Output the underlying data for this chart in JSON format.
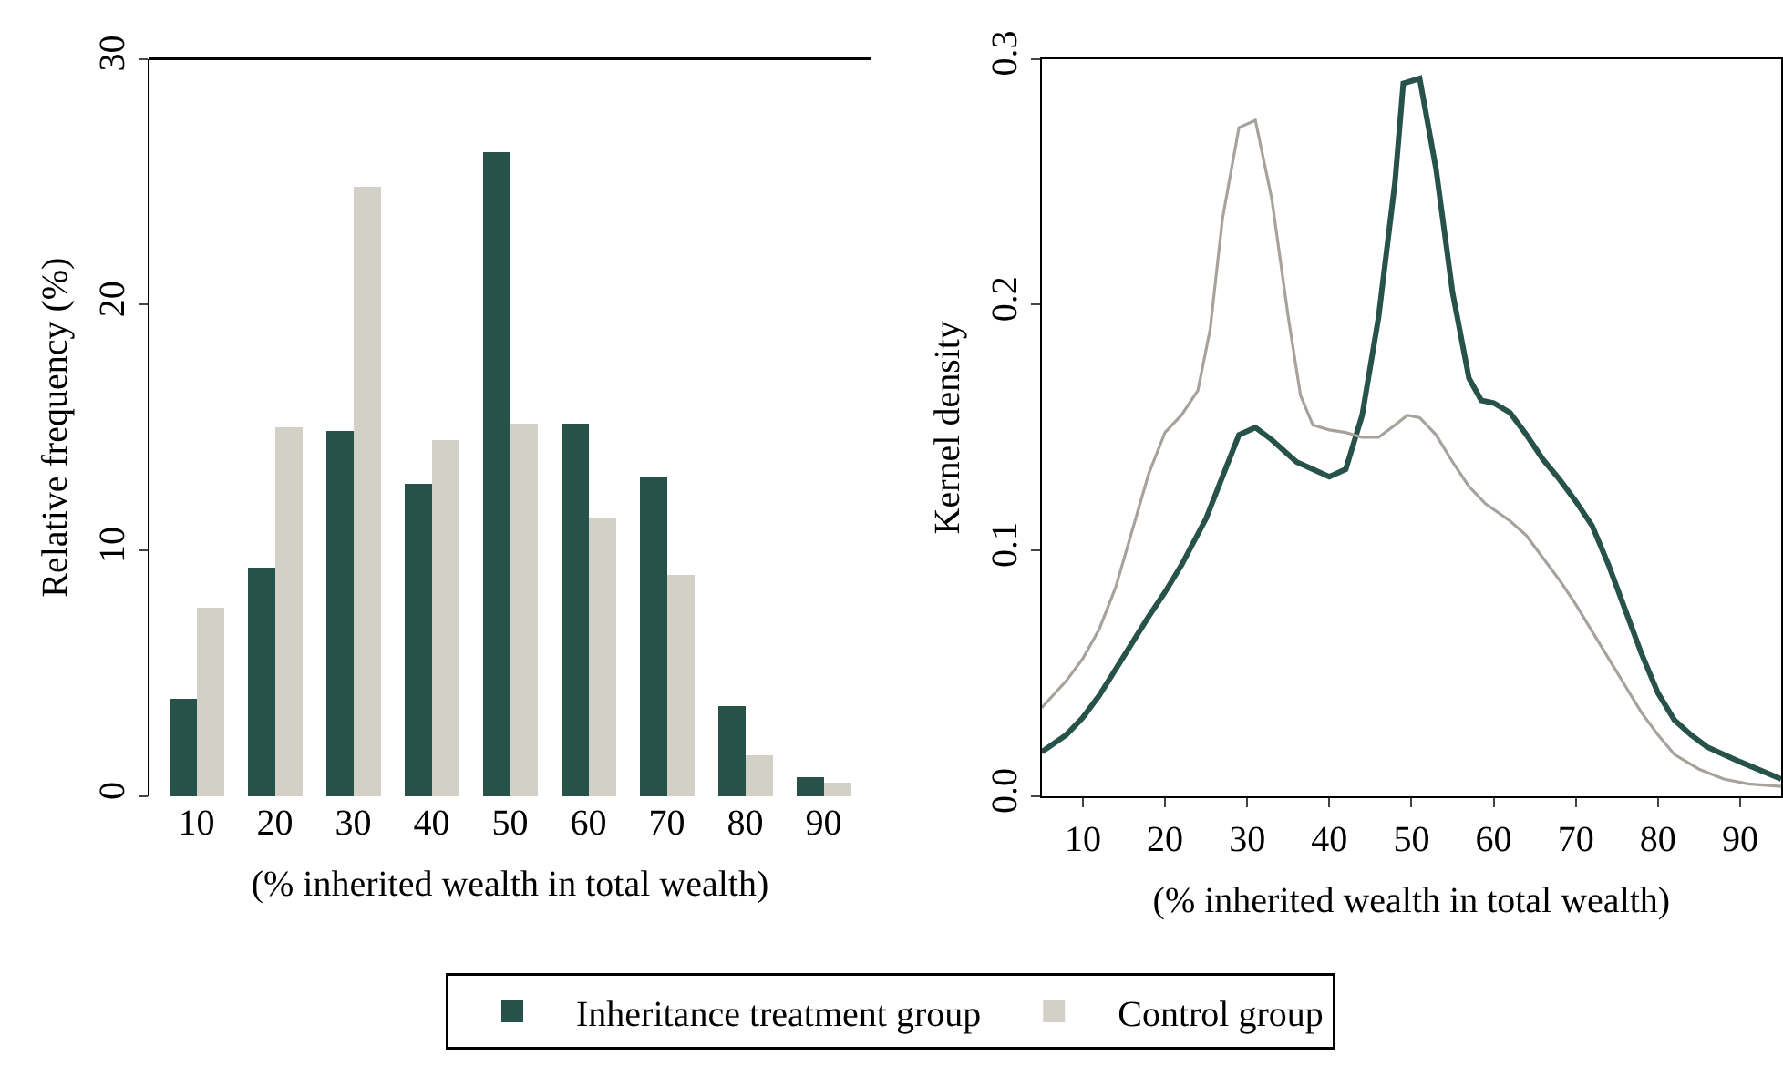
{
  "chart_data": [
    {
      "type": "bar",
      "xlabel": "(% inherited wealth in total wealth)",
      "ylabel": "Relative frequency (%)",
      "categories": [
        "10",
        "20",
        "30",
        "40",
        "50",
        "60",
        "70",
        "80",
        "90"
      ],
      "ylim": [
        0,
        30
      ],
      "yticks": [
        0,
        10,
        20,
        30
      ],
      "legend": "bottom",
      "series": [
        {
          "name": "Inheritance treatment group",
          "color": "#27524a",
          "values": [
            4.0,
            9.3,
            14.9,
            12.7,
            26.2,
            15.2,
            13.0,
            3.7,
            0.8
          ]
        },
        {
          "name": "Control group",
          "color": "#d3d0c8",
          "values": [
            7.7,
            15.0,
            24.8,
            14.5,
            15.2,
            11.3,
            9.0,
            1.7,
            0.6
          ]
        }
      ]
    },
    {
      "type": "line",
      "xlabel": "(% inherited wealth in total wealth)",
      "ylabel": "Kernel density",
      "xlim": [
        5,
        95
      ],
      "xticks": [
        10,
        20,
        30,
        40,
        50,
        60,
        70,
        80,
        90
      ],
      "ylim": [
        0,
        0.3
      ],
      "yticks": [
        {
          "value": 0,
          "label": "0.0"
        },
        0.1,
        0.2,
        0.3
      ],
      "legend": false,
      "marker": "none",
      "line_style": "solid",
      "series": [
        {
          "color": "#27524a",
          "x": [
            5,
            8,
            10,
            12,
            15,
            18,
            20,
            22,
            25,
            27,
            29,
            31,
            33,
            36,
            40,
            42,
            44,
            46,
            48,
            49,
            51,
            53,
            55,
            57,
            58.5,
            60,
            62,
            64,
            66,
            68,
            70,
            72,
            74,
            76,
            78,
            80,
            82,
            84,
            86,
            90,
            95
          ],
          "values": [
            0.018,
            0.025,
            0.032,
            0.041,
            0.057,
            0.073,
            0.083,
            0.094,
            0.113,
            0.13,
            0.147,
            0.15,
            0.145,
            0.136,
            0.13,
            0.133,
            0.155,
            0.195,
            0.25,
            0.29,
            0.292,
            0.255,
            0.205,
            0.17,
            0.161,
            0.16,
            0.156,
            0.147,
            0.137,
            0.129,
            0.12,
            0.11,
            0.094,
            0.076,
            0.058,
            0.042,
            0.031,
            0.025,
            0.02,
            0.014,
            0.007
          ]
        },
        {
          "color": "#a8a29c",
          "x": [
            5,
            8,
            10,
            12,
            14,
            16,
            18,
            20,
            22,
            24,
            25.5,
            27,
            29,
            31,
            33,
            35,
            36.5,
            38,
            40,
            42,
            44,
            46,
            48,
            49.5,
            51,
            53,
            55,
            57,
            59,
            62,
            64,
            66,
            68,
            70,
            72,
            74,
            76,
            78,
            80,
            82,
            85,
            88,
            91,
            95
          ],
          "values": [
            0.036,
            0.047,
            0.056,
            0.068,
            0.085,
            0.108,
            0.131,
            0.148,
            0.155,
            0.165,
            0.19,
            0.235,
            0.272,
            0.275,
            0.243,
            0.195,
            0.163,
            0.151,
            0.149,
            0.148,
            0.146,
            0.146,
            0.151,
            0.155,
            0.154,
            0.147,
            0.136,
            0.126,
            0.119,
            0.112,
            0.106,
            0.097,
            0.088,
            0.078,
            0.067,
            0.056,
            0.045,
            0.034,
            0.025,
            0.017,
            0.011,
            0.007,
            0.005,
            0.004
          ]
        }
      ]
    }
  ]
}
